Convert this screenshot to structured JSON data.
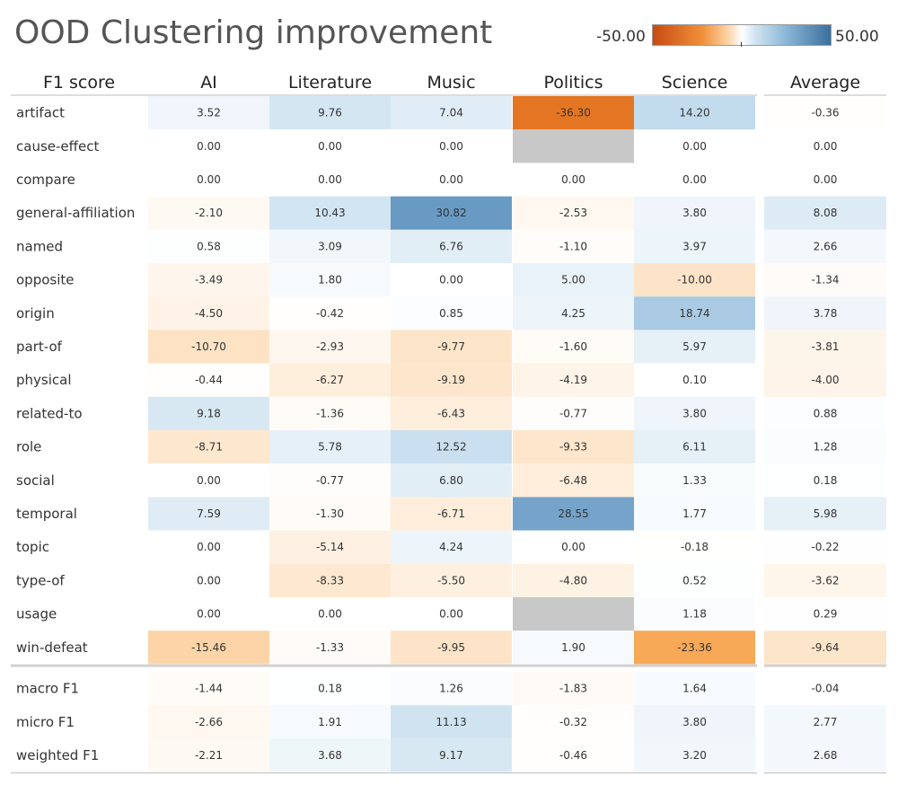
{
  "chart_data": {
    "type": "heatmap",
    "title": "OOD Clustering improvement",
    "row_header": "F1 score",
    "columns": [
      "AI",
      "Literature",
      "Music",
      "Politics",
      "Science"
    ],
    "average_label": "Average",
    "color_scale": {
      "min_label": "-50.00",
      "max_label": "50.00",
      "min": -50,
      "max": 50,
      "negative_color": "#c94a12",
      "mid_color": "#ffffff",
      "positive_color": "#3c6f9e",
      "missing_color": "#c8c8c8"
    },
    "rows": [
      {
        "label": "artifact",
        "values": [
          3.52,
          9.76,
          7.04,
          -36.3,
          14.2
        ],
        "average": -0.36
      },
      {
        "label": "cause-effect",
        "values": [
          0.0,
          0.0,
          0.0,
          null,
          0.0
        ],
        "average": 0.0
      },
      {
        "label": "compare",
        "values": [
          0.0,
          0.0,
          0.0,
          0.0,
          0.0
        ],
        "average": 0.0
      },
      {
        "label": "general-affiliation",
        "values": [
          -2.1,
          10.43,
          30.82,
          -2.53,
          3.8
        ],
        "average": 8.08
      },
      {
        "label": "named",
        "values": [
          0.58,
          3.09,
          6.76,
          -1.1,
          3.97
        ],
        "average": 2.66
      },
      {
        "label": "opposite",
        "values": [
          -3.49,
          1.8,
          0.0,
          5.0,
          -10.0
        ],
        "average": -1.34
      },
      {
        "label": "origin",
        "values": [
          -4.5,
          -0.42,
          0.85,
          4.25,
          18.74
        ],
        "average": 3.78
      },
      {
        "label": "part-of",
        "values": [
          -10.7,
          -2.93,
          -9.77,
          -1.6,
          5.97
        ],
        "average": -3.81
      },
      {
        "label": "physical",
        "values": [
          -0.44,
          -6.27,
          -9.19,
          -4.19,
          0.1
        ],
        "average": -4.0
      },
      {
        "label": "related-to",
        "values": [
          9.18,
          -1.36,
          -6.43,
          -0.77,
          3.8
        ],
        "average": 0.88
      },
      {
        "label": "role",
        "values": [
          -8.71,
          5.78,
          12.52,
          -9.33,
          6.11
        ],
        "average": 1.28
      },
      {
        "label": "social",
        "values": [
          0.0,
          -0.77,
          6.8,
          -6.48,
          1.33
        ],
        "average": 0.18
      },
      {
        "label": "temporal",
        "values": [
          7.59,
          -1.3,
          -6.71,
          28.55,
          1.77
        ],
        "average": 5.98
      },
      {
        "label": "topic",
        "values": [
          0.0,
          -5.14,
          4.24,
          0.0,
          -0.18
        ],
        "average": -0.22
      },
      {
        "label": "type-of",
        "values": [
          0.0,
          -8.33,
          -5.5,
          -4.8,
          0.52
        ],
        "average": -3.62
      },
      {
        "label": "usage",
        "values": [
          0.0,
          0.0,
          0.0,
          null,
          1.18
        ],
        "average": 0.29
      },
      {
        "label": "win-defeat",
        "values": [
          -15.46,
          -1.33,
          -9.95,
          1.9,
          -23.36
        ],
        "average": -9.64
      }
    ],
    "summary_rows": [
      {
        "label": "macro F1",
        "values": [
          -1.44,
          0.18,
          1.26,
          -1.83,
          1.64
        ],
        "average": -0.04
      },
      {
        "label": "micro F1",
        "values": [
          -2.66,
          1.91,
          11.13,
          -0.32,
          3.8
        ],
        "average": 2.77
      },
      {
        "label": "weighted F1",
        "values": [
          -2.21,
          3.68,
          9.17,
          -0.46,
          3.2
        ],
        "average": 2.68
      }
    ]
  }
}
